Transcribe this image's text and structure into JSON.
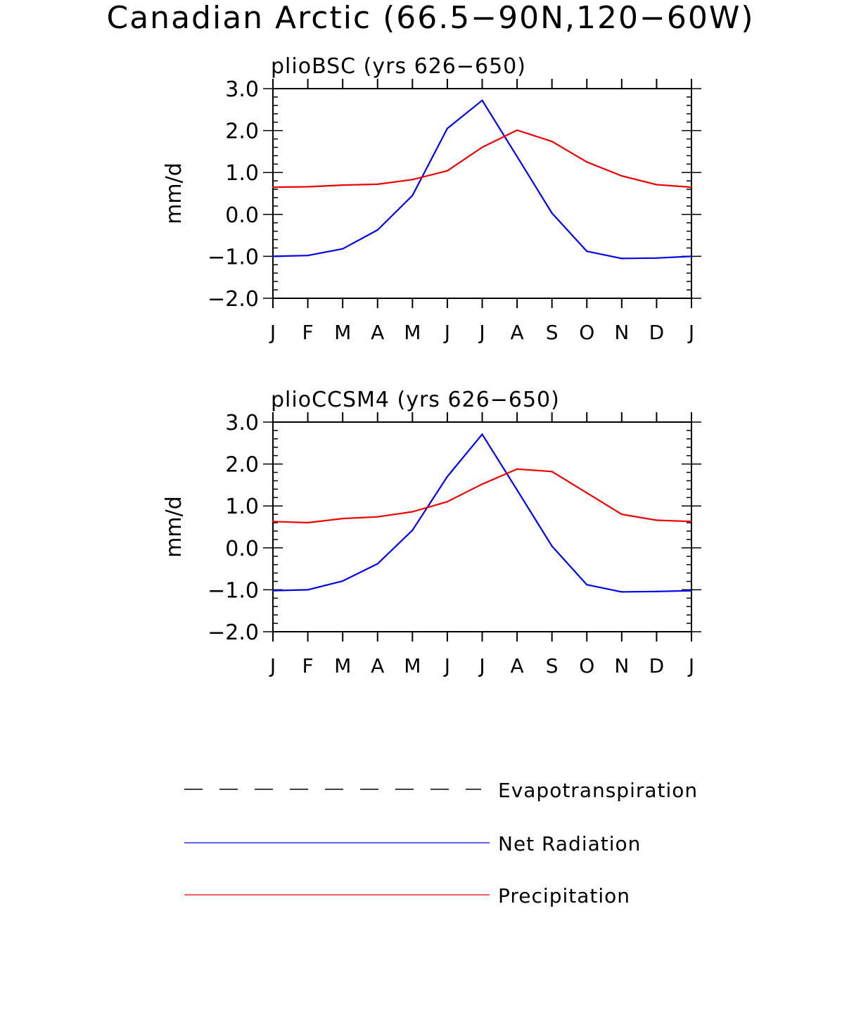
{
  "figure": {
    "title": "Canadian Arctic (66.5−90N,120−60W)"
  },
  "colors": {
    "net_radiation": "#0000ee",
    "precipitation": "#ee0000",
    "evapotranspiration": "#000000"
  },
  "legend": {
    "placement": "bottom",
    "items": [
      {
        "label": "Evapotranspiration",
        "style": "dashed",
        "color": "#000000"
      },
      {
        "label": "Net Radiation",
        "style": "solid",
        "color": "#0000ee"
      },
      {
        "label": "Precipitation",
        "style": "solid",
        "color": "#ee0000"
      }
    ]
  },
  "chart_data": [
    {
      "type": "line",
      "title": "plioBSC (yrs 626−650)",
      "ylabel": "mm/d",
      "xlabel": "",
      "ylim": [
        -2.0,
        3.0
      ],
      "yticks": [
        "3.0",
        "2.0",
        "1.0",
        "0.0",
        "−1.0",
        "−2.0"
      ],
      "ytick_values": [
        3.0,
        2.0,
        1.0,
        0.0,
        -1.0,
        -2.0
      ],
      "categories": [
        "J",
        "F",
        "M",
        "A",
        "M",
        "J",
        "J",
        "A",
        "S",
        "O",
        "N",
        "D",
        "J"
      ],
      "grid": false,
      "series": [
        {
          "name": "Net Radiation",
          "color": "#0000ee",
          "values": [
            -1.0,
            -0.98,
            -0.82,
            -0.37,
            0.45,
            2.05,
            2.72,
            1.38,
            0.03,
            -0.88,
            -1.05,
            -1.04,
            -1.0
          ]
        },
        {
          "name": "Precipitation",
          "color": "#ee0000",
          "values": [
            0.65,
            0.66,
            0.7,
            0.72,
            0.83,
            1.04,
            1.6,
            2.01,
            1.74,
            1.25,
            0.92,
            0.71,
            0.65
          ]
        }
      ]
    },
    {
      "type": "line",
      "title": "plioCCSM4 (yrs 626−650)",
      "ylabel": "mm/d",
      "xlabel": "",
      "ylim": [
        -2.0,
        3.0
      ],
      "yticks": [
        "3.0",
        "2.0",
        "1.0",
        "0.0",
        "−1.0",
        "−2.0"
      ],
      "ytick_values": [
        3.0,
        2.0,
        1.0,
        0.0,
        -1.0,
        -2.0
      ],
      "categories": [
        "J",
        "F",
        "M",
        "A",
        "M",
        "J",
        "J",
        "A",
        "S",
        "O",
        "N",
        "D",
        "J"
      ],
      "grid": false,
      "series": [
        {
          "name": "Net Radiation",
          "color": "#0000ee",
          "values": [
            -1.02,
            -1.0,
            -0.79,
            -0.38,
            0.42,
            1.7,
            2.71,
            1.38,
            0.04,
            -0.88,
            -1.05,
            -1.04,
            -1.02
          ]
        },
        {
          "name": "Precipitation",
          "color": "#ee0000",
          "values": [
            0.63,
            0.6,
            0.7,
            0.74,
            0.86,
            1.1,
            1.52,
            1.88,
            1.82,
            1.31,
            0.8,
            0.66,
            0.63
          ]
        }
      ]
    }
  ]
}
